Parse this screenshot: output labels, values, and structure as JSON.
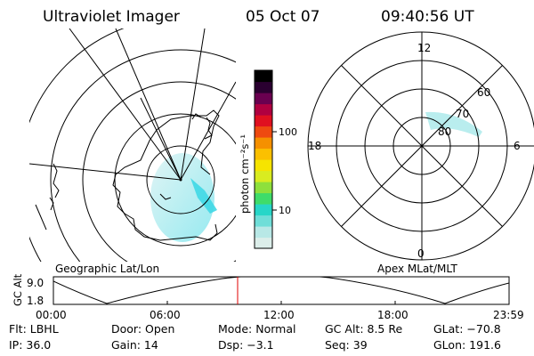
{
  "header": {
    "instrument": "Ultraviolet Imager",
    "date": "05 Oct 07",
    "time": "09:40:56 UT"
  },
  "geo_map": {
    "caption": "Geographic Lat/Lon"
  },
  "color_bar": {
    "unit_label": "photon cm⁻²s⁻¹",
    "tick_labels": [
      "100",
      "10"
    ],
    "colors_bottom_to_top": [
      "#dceeea",
      "#b8e8e6",
      "#6fded8",
      "#27d6c8",
      "#3fdc6a",
      "#8ee03c",
      "#d9ec20",
      "#f6e400",
      "#fbc000",
      "#f59000",
      "#ee4a10",
      "#e01020",
      "#b00040",
      "#6a0050",
      "#2a0030",
      "#000000"
    ]
  },
  "mlt_dial": {
    "caption": "Apex MLat/MLT",
    "mlt_labels": [
      "12",
      "18",
      "6",
      "0"
    ],
    "lat_labels": [
      "60",
      "70",
      "80"
    ]
  },
  "gc_altitude_plot": {
    "axis_title": "GC Alt",
    "y_ticks": [
      "9.0",
      "1.8"
    ],
    "x_ticks": [
      "00:00",
      "06:00",
      "12:00",
      "18:00",
      "23:59"
    ],
    "marker_color": "#e00000"
  },
  "info": {
    "row1": {
      "filter": "Flt: LBHL",
      "door": "Door: Open",
      "mode": "Mode: Normal",
      "gc_alt": "GC Alt: 8.5 Re",
      "glat": "GLat: −70.8"
    },
    "row2": {
      "ip": "IP: 36.0",
      "gain": "Gain: 14",
      "dsp": "Dsp:    −3.1",
      "seq": "Seq: 39",
      "glon": "GLon: 191.6"
    }
  }
}
